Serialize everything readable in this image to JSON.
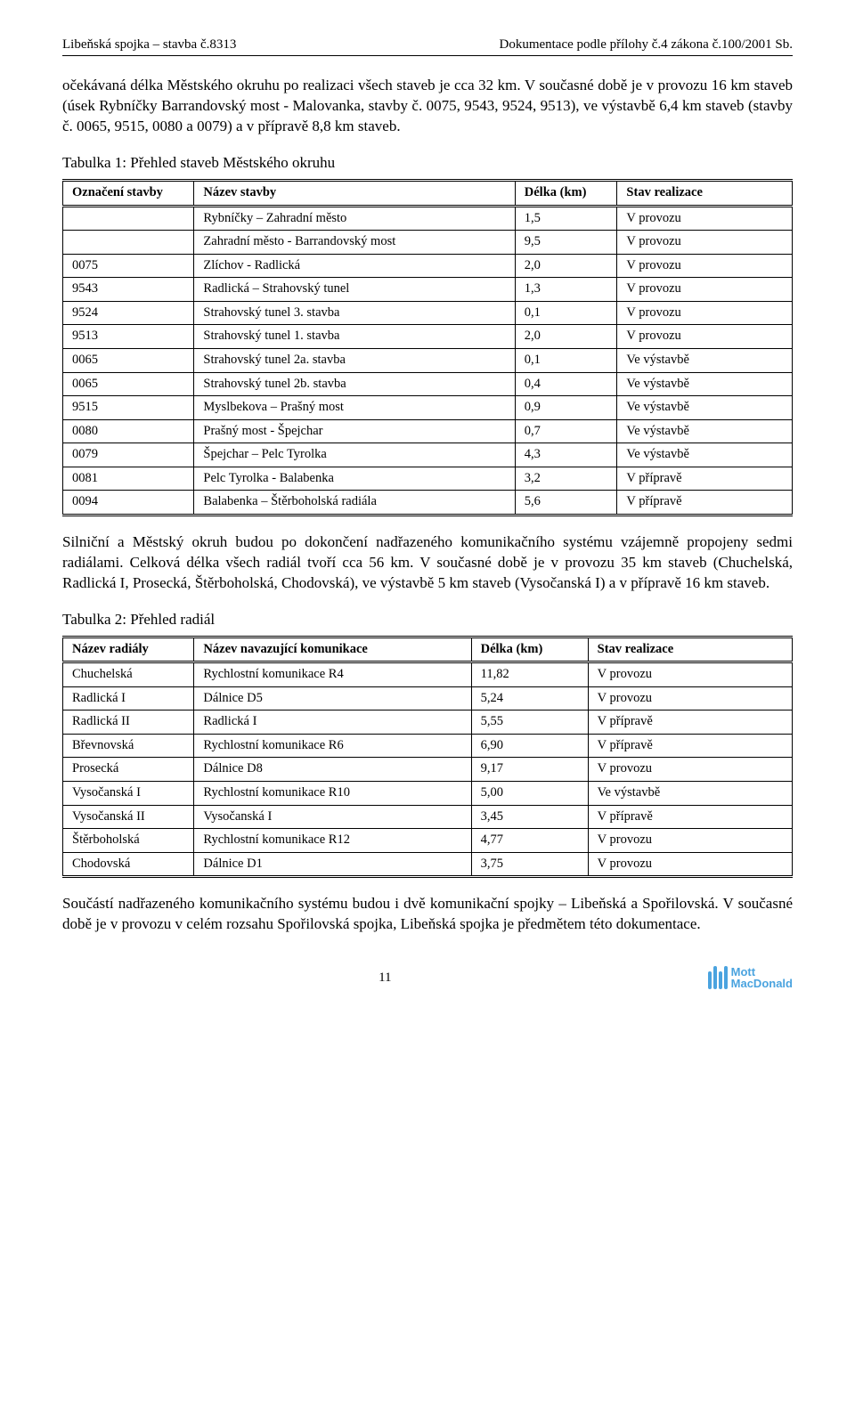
{
  "header": {
    "left": "Libeňská spojka – stavba č.8313",
    "right": "Dokumentace podle přílohy č.4 zákona č.100/2001 Sb."
  },
  "para1": "očekávaná délka Městského okruhu po realizaci všech staveb je cca 32 km. V současné době je v provozu 16 km staveb (úsek Rybníčky Barrandovský most - Malovanka, stavby č. 0075, 9543, 9524, 9513), ve výstavbě 6,4 km staveb (stavby č. 0065, 9515, 0080 a 0079) a v přípravě 8,8 km staveb.",
  "table1": {
    "caption": "Tabulka 1: Přehled staveb Městského okruhu",
    "columns": [
      "Označení stavby",
      "Název stavby",
      "Délka (km)",
      "Stav realizace"
    ],
    "col_widths": [
      "18%",
      "44%",
      "14%",
      "24%"
    ],
    "rows": [
      [
        "",
        "Rybníčky – Zahradní město",
        "1,5",
        "V provozu"
      ],
      [
        "",
        "Zahradní město - Barrandovský most",
        "9,5",
        "V provozu"
      ],
      [
        "0075",
        "Zlíchov - Radlická",
        "2,0",
        "V provozu"
      ],
      [
        "9543",
        "Radlická – Strahovský tunel",
        "1,3",
        "V provozu"
      ],
      [
        "9524",
        "Strahovský tunel 3. stavba",
        "0,1",
        "V provozu"
      ],
      [
        "9513",
        "Strahovský tunel 1. stavba",
        "2,0",
        "V provozu"
      ],
      [
        "0065",
        "Strahovský tunel 2a. stavba",
        "0,1",
        "Ve výstavbě"
      ],
      [
        "0065",
        "Strahovský tunel 2b. stavba",
        "0,4",
        "Ve výstavbě"
      ],
      [
        "9515",
        "Myslbekova – Prašný most",
        "0,9",
        "Ve výstavbě"
      ],
      [
        "0080",
        "Prašný most - Špejchar",
        "0,7",
        "Ve výstavbě"
      ],
      [
        "0079",
        "Špejchar – Pelc Tyrolka",
        "4,3",
        "Ve výstavbě"
      ],
      [
        "0081",
        "Pelc Tyrolka - Balabenka",
        "3,2",
        "V přípravě"
      ],
      [
        "0094",
        "Balabenka – Štěrboholská radiála",
        "5,6",
        "V přípravě"
      ]
    ]
  },
  "para2": "Silniční a Městský okruh budou po dokončení nadřazeného komunikačního systému vzájemně propojeny sedmi radiálami. Celková délka všech radiál tvoří cca 56 km. V současné době je v provozu 35 km staveb (Chuchelská, Radlická I, Prosecká, Štěrboholská, Chodovská), ve výstavbě 5 km staveb (Vysočanská I) a v přípravě 16 km staveb.",
  "table2": {
    "caption": "Tabulka 2: Přehled radiál",
    "columns": [
      "Název radiály",
      "Název navazující komunikace",
      "Délka (km)",
      "Stav realizace"
    ],
    "col_widths": [
      "18%",
      "38%",
      "16%",
      "28%"
    ],
    "rows": [
      [
        "Chuchelská",
        "Rychlostní komunikace R4",
        "11,82",
        "V provozu"
      ],
      [
        "Radlická I",
        "Dálnice D5",
        "5,24",
        "V provozu"
      ],
      [
        "Radlická II",
        "Radlická I",
        "5,55",
        "V přípravě"
      ],
      [
        "Břevnovská",
        "Rychlostní komunikace R6",
        "6,90",
        "V přípravě"
      ],
      [
        "Prosecká",
        "Dálnice D8",
        "9,17",
        "V provozu"
      ],
      [
        "Vysočanská I",
        "Rychlostní komunikace R10",
        "5,00",
        "Ve výstavbě"
      ],
      [
        "Vysočanská II",
        "Vysočanská I",
        "3,45",
        "V přípravě"
      ],
      [
        "Štěrboholská",
        "Rychlostní komunikace R12",
        "4,77",
        "V provozu"
      ],
      [
        "Chodovská",
        "Dálnice D1",
        "3,75",
        "V provozu"
      ]
    ]
  },
  "para3": "Součástí nadřazeného komunikačního systému budou i dvě komunikační spojky – Libeňská a Spořilovská. V současné době je v provozu v celém rozsahu Spořilovská spojka, Libeňská spojka je předmětem této dokumentace.",
  "footer": {
    "page": "11",
    "logo_line1": "Mott",
    "logo_line2": "MacDonald"
  }
}
